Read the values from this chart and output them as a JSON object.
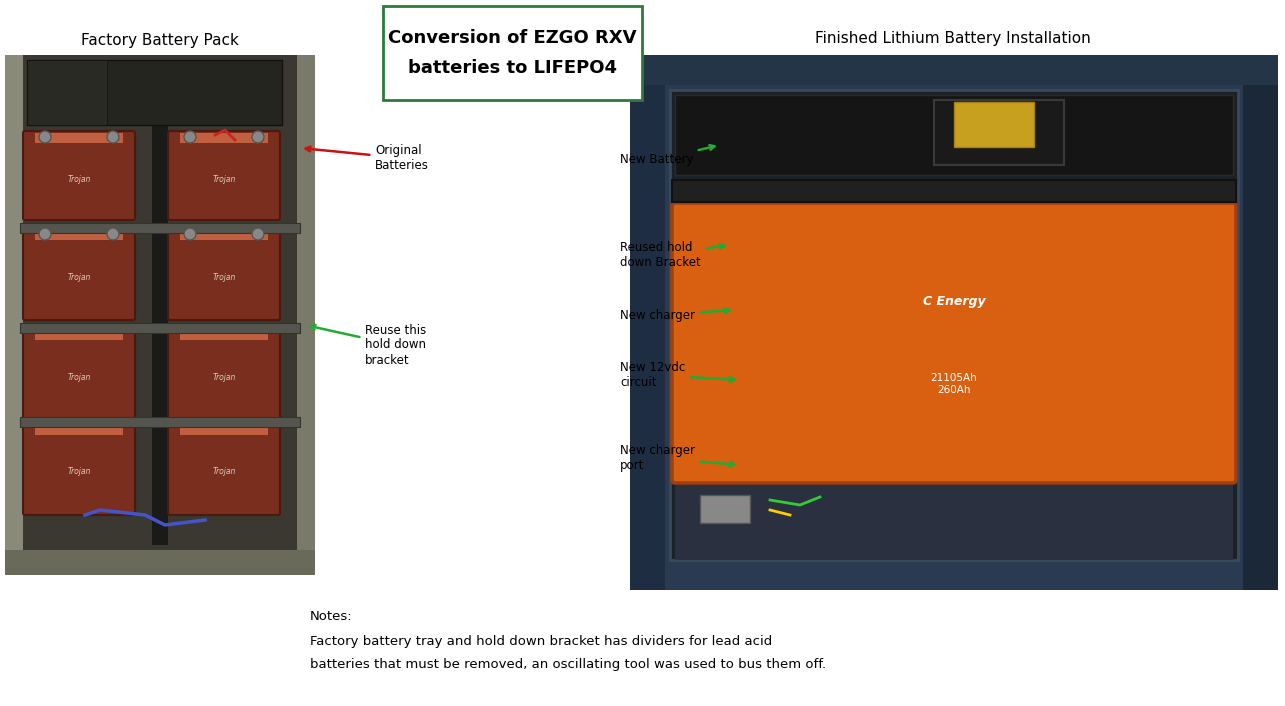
{
  "title_line1": "Conversion of EZGO RXV",
  "title_line2": "batteries to LIFEPO4",
  "title_box_color": "#2d7a3a",
  "left_photo_title": "Factory Battery Pack",
  "right_photo_title": "Finished Lithium Battery Installation",
  "notes_header": "Notes:",
  "notes_line1": "Factory battery tray and hold down bracket has dividers for lead acid",
  "notes_line2": "batteries that must be removed, an oscillating tool was used to bus them off.",
  "bg_color": "#ffffff",
  "arrow_green": "#22aa33",
  "arrow_red": "#cc1111",
  "font_size_photo_title": 11,
  "font_size_annot": 8.5,
  "font_size_notes": 9.5,
  "font_size_box_title": 13
}
